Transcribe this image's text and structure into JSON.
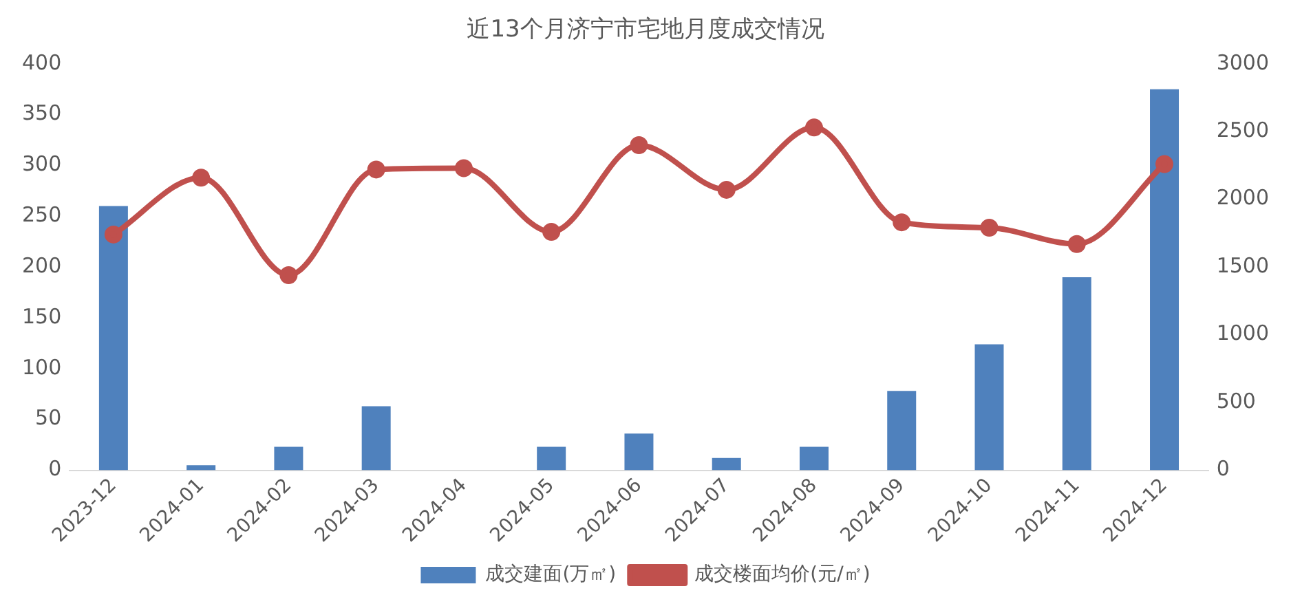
{
  "chart_data": {
    "type": "bar",
    "title": "近13个月济宁市宅地月度成交情况",
    "categories": [
      "2023-12",
      "2024-01",
      "2024-02",
      "2024-03",
      "2024-04",
      "2024-05",
      "2024-06",
      "2024-07",
      "2024-08",
      "2024-09",
      "2024-10",
      "2024-11",
      "2024-12"
    ],
    "series": [
      {
        "name": "成交建面(万㎡)",
        "color": "#4f81bd",
        "values": [
          260,
          5,
          23,
          63,
          0,
          23,
          36,
          12,
          23,
          78,
          124,
          190,
          375
        ]
      },
      {
        "name": "成交楼面均价(元/㎡)",
        "type": "line",
        "axis": "y2",
        "color": "#c0504d",
        "marker": "circle",
        "values": [
          1740,
          2160,
          1440,
          2220,
          2230,
          1760,
          2400,
          2070,
          2530,
          1830,
          1790,
          1670,
          2260
        ]
      }
    ],
    "ylim": [
      0,
      400
    ],
    "yticks": [
      0,
      50,
      100,
      150,
      200,
      250,
      300,
      350,
      400
    ],
    "y2lim": [
      0,
      3000
    ],
    "y2ticks": [
      0,
      500,
      1000,
      1500,
      2000,
      2500,
      3000
    ],
    "legend": "bottom"
  }
}
